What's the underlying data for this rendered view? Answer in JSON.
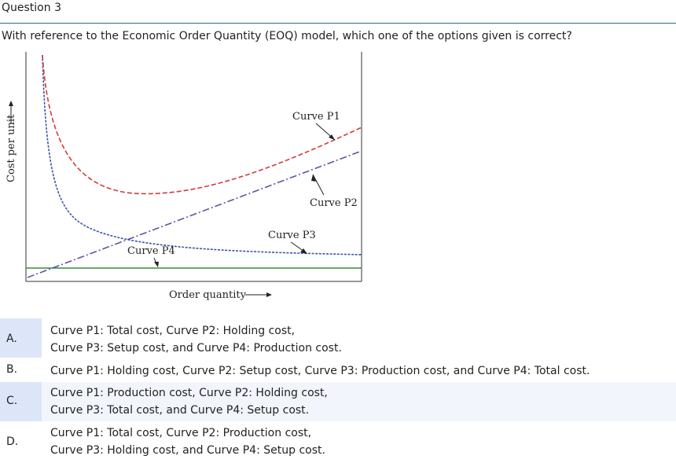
{
  "question": {
    "title": "Question 3",
    "text": "With reference to the Economic Order Quantity (EOQ) model, which one of the options given is correct?"
  },
  "chart_data": {
    "type": "line",
    "xlabel": "Order quantity",
    "ylabel": "Cost per unit",
    "grid": false,
    "series": [
      {
        "name": "Curve P1",
        "style": "dashed",
        "color": "#d43a3a"
      },
      {
        "name": "Curve P2",
        "style": "dash-dot",
        "color": "#6a4fa0"
      },
      {
        "name": "Curve P3",
        "style": "dashed",
        "color": "#3a55a8"
      },
      {
        "name": "Curve P4",
        "style": "solid",
        "color": "#3a8a3a"
      }
    ]
  },
  "options": [
    {
      "letter": "A.",
      "lines": [
        "Curve P1: Total cost, Curve P2: Holding cost,",
        "Curve P3: Setup cost, and Curve P4: Production cost."
      ]
    },
    {
      "letter": "B.",
      "lines": [
        "Curve P1: Holding cost, Curve P2: Setup cost, Curve P3: Production cost, and Curve P4: Total cost."
      ]
    },
    {
      "letter": "C.",
      "lines": [
        "Curve P1: Production cost, Curve P2: Holding cost,",
        "Curve P3: Total cost, and Curve P4: Setup cost."
      ]
    },
    {
      "letter": "D.",
      "lines": [
        "Curve P1: Total cost, Curve P2: Production cost,",
        "Curve P3: Holding cost, and Curve P4: Setup cost."
      ]
    }
  ]
}
